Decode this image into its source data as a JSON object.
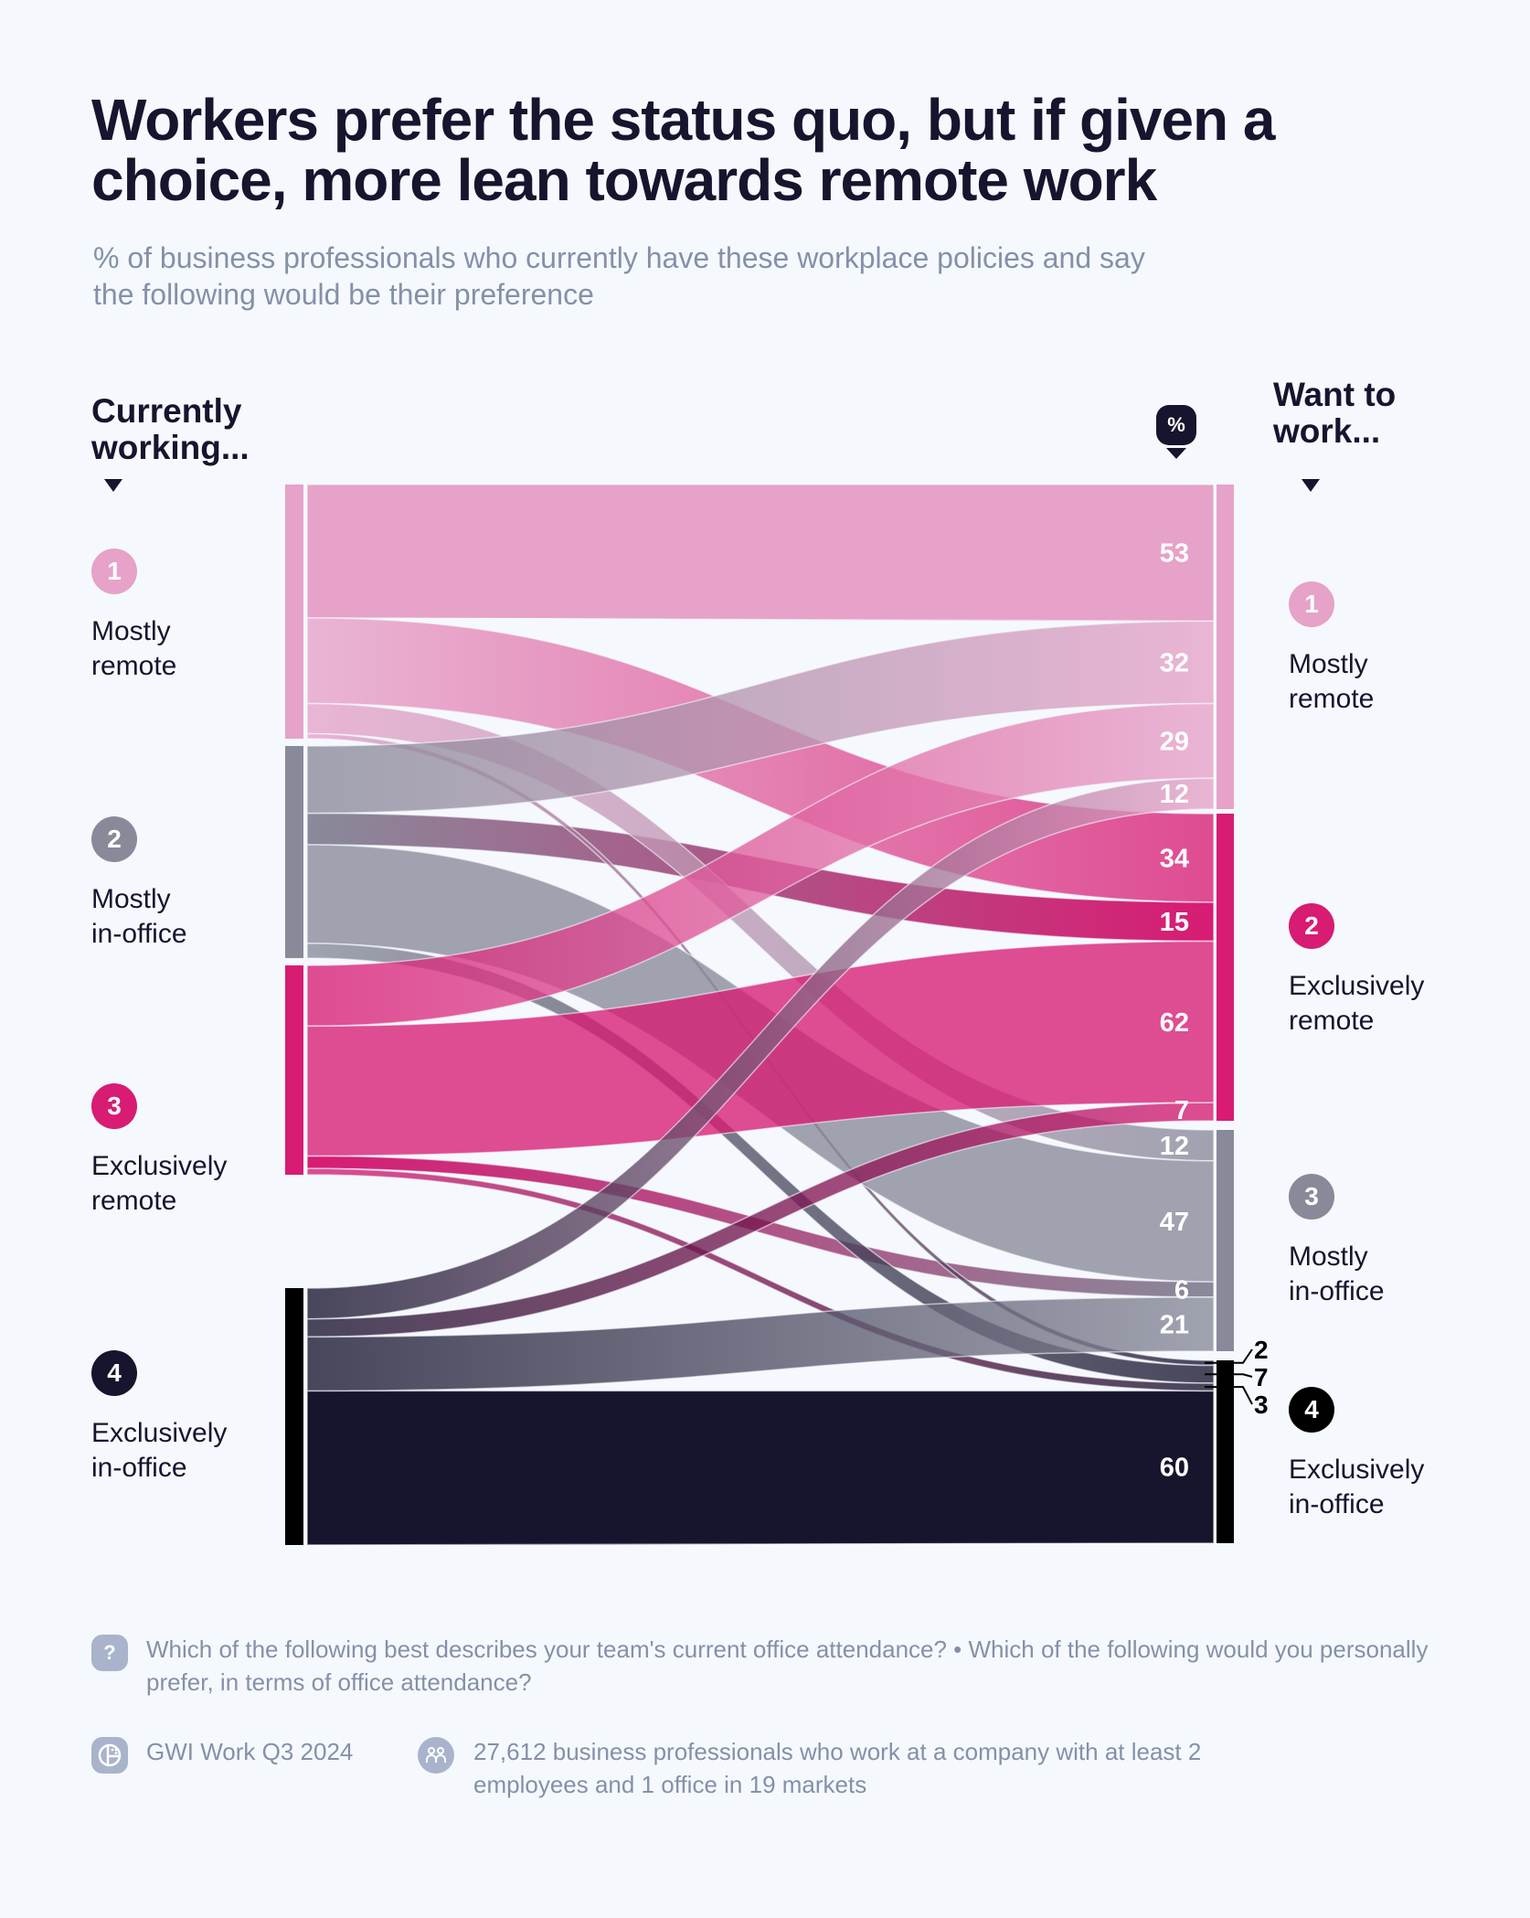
{
  "header": {
    "title": "Workers prefer the status quo, but if given a choice, more lean towards remote work",
    "subtitle": "% of business professionals who currently have these workplace policies and say the following would be their preference"
  },
  "columns": {
    "left_heading": "Currently working...",
    "right_heading": "Want to work...",
    "unit_badge": "%"
  },
  "colors": {
    "mostly_remote": "#e6a2c8",
    "exclusively_remote": "#d81b73",
    "mostly_in_office": "#888a9a",
    "exclusively_in_office": "#17142e",
    "background": "#f5f9fe",
    "muted_text": "#8590a8"
  },
  "left_nodes": [
    {
      "num": "1",
      "label": "Mostly remote",
      "line1": "Mostly",
      "line2": "remote"
    },
    {
      "num": "2",
      "label": "Mostly in-office",
      "line1": "Mostly",
      "line2": "in-office"
    },
    {
      "num": "3",
      "label": "Exclusively remote",
      "line1": "Exclusively",
      "line2": "remote"
    },
    {
      "num": "4",
      "label": "Exclusively in-office",
      "line1": "Exclusively",
      "line2": "in-office"
    }
  ],
  "right_nodes": [
    {
      "num": "1",
      "label": "Mostly remote",
      "line1": "Mostly",
      "line2": "remote"
    },
    {
      "num": "2",
      "label": "Exclusively remote",
      "line1": "Exclusively",
      "line2": "remote"
    },
    {
      "num": "3",
      "label": "Mostly in-office",
      "line1": "Mostly",
      "line2": "in-office"
    },
    {
      "num": "4",
      "label": "Exclusively in-office",
      "line1": "Exclusively",
      "line2": "in-office"
    }
  ],
  "chart_data": {
    "type": "sankey",
    "title": "Workers prefer the status quo, but if given a choice, more lean towards remote work",
    "subtitle": "% of business professionals who currently have these workplace policies and say the following would be their preference",
    "source_label": "Currently working...",
    "target_label": "Want to work...",
    "sources": [
      "Mostly remote",
      "Mostly in-office",
      "Exclusively remote",
      "Exclusively in-office"
    ],
    "targets": [
      "Mostly remote",
      "Exclusively remote",
      "Mostly in-office",
      "Exclusively in-office"
    ],
    "unit": "%",
    "flows": [
      {
        "source": "Mostly remote",
        "target": "Mostly remote",
        "value": 53
      },
      {
        "source": "Mostly remote",
        "target": "Exclusively remote",
        "value": 34
      },
      {
        "source": "Mostly remote",
        "target": "Mostly in-office",
        "value": 12
      },
      {
        "source": "Mostly remote",
        "target": "Exclusively in-office",
        "value": 2
      },
      {
        "source": "Mostly in-office",
        "target": "Mostly remote",
        "value": 32
      },
      {
        "source": "Mostly in-office",
        "target": "Exclusively remote",
        "value": 15
      },
      {
        "source": "Mostly in-office",
        "target": "Mostly in-office",
        "value": 47
      },
      {
        "source": "Mostly in-office",
        "target": "Exclusively in-office",
        "value": 7
      },
      {
        "source": "Exclusively remote",
        "target": "Mostly remote",
        "value": 29
      },
      {
        "source": "Exclusively remote",
        "target": "Exclusively remote",
        "value": 62
      },
      {
        "source": "Exclusively remote",
        "target": "Mostly in-office",
        "value": 6
      },
      {
        "source": "Exclusively remote",
        "target": "Exclusively in-office",
        "value": 3
      },
      {
        "source": "Exclusively in-office",
        "target": "Mostly remote",
        "value": 12
      },
      {
        "source": "Exclusively in-office",
        "target": "Exclusively remote",
        "value": 7
      },
      {
        "source": "Exclusively in-office",
        "target": "Mostly in-office",
        "value": 21
      },
      {
        "source": "Exclusively in-office",
        "target": "Exclusively in-office",
        "value": 60
      }
    ],
    "matrix": [
      [
        53,
        34,
        12,
        2
      ],
      [
        32,
        15,
        47,
        7
      ],
      [
        29,
        62,
        6,
        3
      ],
      [
        12,
        7,
        21,
        60
      ]
    ],
    "target_label_order": [
      [
        "53",
        "32",
        "29",
        "12"
      ],
      [
        "34",
        "15",
        "62",
        "7"
      ],
      [
        "12",
        "47",
        "6",
        "21"
      ],
      [
        "2",
        "7",
        "3",
        "60"
      ]
    ]
  },
  "footer": {
    "question": "Which of the following best describes your team's current office attendance? • Which of the following would you personally prefer, in terms of office attendance?",
    "source": "GWI Work Q3 2024",
    "sample": "27,612 business professionals who work at a company with at least 2 employees and 1 office in 19 markets",
    "question_icon": "question-icon",
    "source_icon": "gwi-logo-icon",
    "sample_icon": "people-icon"
  }
}
